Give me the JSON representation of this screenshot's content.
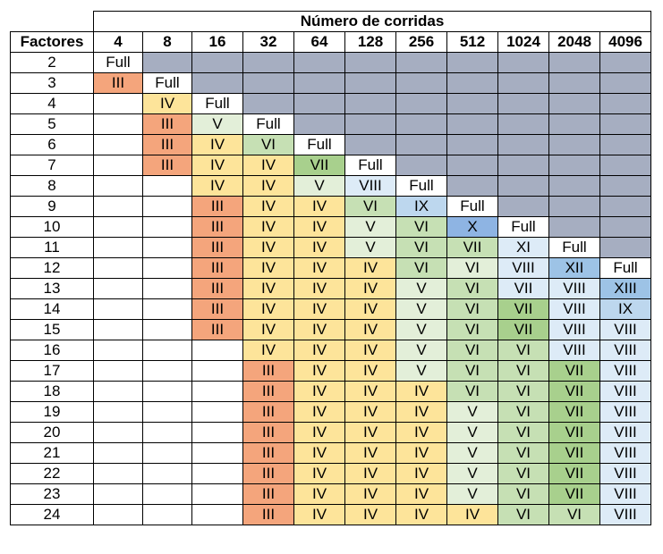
{
  "table": {
    "title": "Número de corridas",
    "factors_label": "Factores",
    "runs": [
      "4",
      "8",
      "16",
      "32",
      "64",
      "128",
      "256",
      "512",
      "1024",
      "2048",
      "4096"
    ],
    "rows": [
      {
        "factor": "2",
        "cells": [
          "Full",
          "",
          "",
          "",
          "",
          "",
          "",
          "",
          "",
          "",
          ""
        ]
      },
      {
        "factor": "3",
        "cells": [
          "III",
          "Full",
          "",
          "",
          "",
          "",
          "",
          "",
          "",
          "",
          ""
        ]
      },
      {
        "factor": "4",
        "cells": [
          "",
          "IV",
          "Full",
          "",
          "",
          "",
          "",
          "",
          "",
          "",
          ""
        ]
      },
      {
        "factor": "5",
        "cells": [
          "",
          "III",
          "V",
          "Full",
          "",
          "",
          "",
          "",
          "",
          "",
          ""
        ]
      },
      {
        "factor": "6",
        "cells": [
          "",
          "III",
          "IV",
          "VI",
          "Full",
          "",
          "",
          "",
          "",
          "",
          ""
        ]
      },
      {
        "factor": "7",
        "cells": [
          "",
          "III",
          "IV",
          "IV",
          "VII",
          "Full",
          "",
          "",
          "",
          "",
          ""
        ]
      },
      {
        "factor": "8",
        "cells": [
          "",
          "",
          "IV",
          "IV",
          "V",
          "VIII",
          "Full",
          "",
          "",
          "",
          ""
        ]
      },
      {
        "factor": "9",
        "cells": [
          "",
          "",
          "III",
          "IV",
          "IV",
          "VI",
          "IX",
          "Full",
          "",
          "",
          ""
        ]
      },
      {
        "factor": "10",
        "cells": [
          "",
          "",
          "III",
          "IV",
          "IV",
          "V",
          "VI",
          "X",
          "Full",
          "",
          ""
        ]
      },
      {
        "factor": "11",
        "cells": [
          "",
          "",
          "III",
          "IV",
          "IV",
          "V",
          "VI",
          "VII",
          "XI",
          "Full",
          ""
        ]
      },
      {
        "factor": "12",
        "cells": [
          "",
          "",
          "III",
          "IV",
          "IV",
          "IV",
          "VI",
          "VI",
          "VIII",
          "XII",
          "Full"
        ]
      },
      {
        "factor": "13",
        "cells": [
          "",
          "",
          "III",
          "IV",
          "IV",
          "IV",
          "V",
          "VI",
          "VII",
          "VIII",
          "XIII"
        ]
      },
      {
        "factor": "14",
        "cells": [
          "",
          "",
          "III",
          "IV",
          "IV",
          "IV",
          "V",
          "VI",
          "VII",
          "VIII",
          "IX"
        ]
      },
      {
        "factor": "15",
        "cells": [
          "",
          "",
          "III",
          "IV",
          "IV",
          "IV",
          "V",
          "VI",
          "VII",
          "VIII",
          "VIII"
        ]
      },
      {
        "factor": "16",
        "cells": [
          "",
          "",
          "",
          "IV",
          "IV",
          "IV",
          "V",
          "VI",
          "VI",
          "VIII",
          "VIII"
        ]
      },
      {
        "factor": "17",
        "cells": [
          "",
          "",
          "",
          "III",
          "IV",
          "IV",
          "V",
          "VI",
          "VI",
          "VII",
          "VIII"
        ]
      },
      {
        "factor": "18",
        "cells": [
          "",
          "",
          "",
          "III",
          "IV",
          "IV",
          "IV",
          "VI",
          "VI",
          "VII",
          "VIII"
        ]
      },
      {
        "factor": "19",
        "cells": [
          "",
          "",
          "",
          "III",
          "IV",
          "IV",
          "IV",
          "V",
          "VI",
          "VII",
          "VIII"
        ]
      },
      {
        "factor": "20",
        "cells": [
          "",
          "",
          "",
          "III",
          "IV",
          "IV",
          "IV",
          "V",
          "VI",
          "VII",
          "VIII"
        ]
      },
      {
        "factor": "21",
        "cells": [
          "",
          "",
          "",
          "III",
          "IV",
          "IV",
          "IV",
          "V",
          "VI",
          "VII",
          "VIII"
        ]
      },
      {
        "factor": "22",
        "cells": [
          "",
          "",
          "",
          "III",
          "IV",
          "IV",
          "IV",
          "V",
          "VI",
          "VII",
          "VIII"
        ]
      },
      {
        "factor": "23",
        "cells": [
          "",
          "",
          "",
          "III",
          "IV",
          "IV",
          "IV",
          "V",
          "VI",
          "VII",
          "VIII"
        ]
      },
      {
        "factor": "24",
        "cells": [
          "",
          "",
          "",
          "III",
          "IV",
          "IV",
          "IV",
          "IV",
          "VI",
          "VI",
          "VIII"
        ]
      }
    ]
  },
  "colors": {
    "unused": "#a6aec1",
    "empty": "#ffffff",
    "Full": "#ffffff",
    "III": "#f4a57c",
    "IV": "#fde49a",
    "V": "#e3efd9",
    "VI": "#c6e0b4",
    "VII": "#a8d08d",
    "VIII": "#ddebf7",
    "IX": "#bdd7ee",
    "X": "#8eb4e3",
    "XI": "#ddebf7",
    "XII": "#9dc3e6",
    "XIII": "#9dc3e6"
  },
  "cell_overrides": [
    {
      "row": 6,
      "col": 4,
      "color": "#e3efd9"
    },
    {
      "row": 9,
      "col": 7,
      "color": "#c6e0b4"
    },
    {
      "row": 10,
      "col": 6,
      "color": "#c6e0b4"
    },
    {
      "row": 10,
      "col": 7,
      "color": "#e3efd9"
    },
    {
      "row": 11,
      "col": 7,
      "color": "#c6e0b4"
    },
    {
      "row": 11,
      "col": 8,
      "color": "#ddebf7"
    },
    {
      "row": 12,
      "col": 8,
      "color": "#a8d08d"
    },
    {
      "row": 13,
      "col": 8,
      "color": "#a8d08d"
    },
    {
      "row": 14,
      "col": 8,
      "color": "#c6e0b4"
    },
    {
      "row": 14,
      "col": 9,
      "color": "#ddebf7"
    },
    {
      "row": 15,
      "col": 9,
      "color": "#a8d08d"
    },
    {
      "row": 23,
      "col": 7,
      "color": "#fde49a"
    },
    {
      "row": 23,
      "col": 10,
      "color": "#a8d08d"
    }
  ]
}
